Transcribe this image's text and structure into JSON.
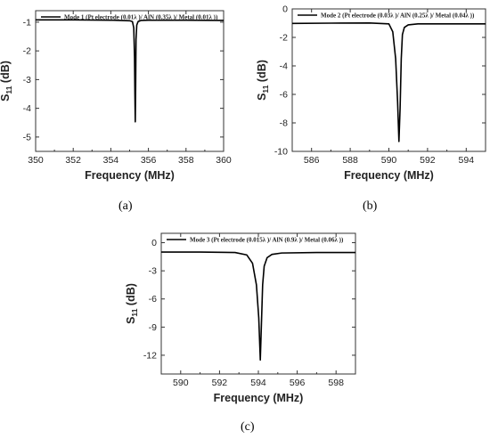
{
  "chart_data": [
    {
      "type": "line",
      "title": "",
      "xlabel": "Frequency (MHz)",
      "ylabel": "S11 (dB)",
      "ylabel_main": "S",
      "ylabel_sub": "11",
      "ylabel_unit": " (dB)",
      "xlim": [
        350,
        360
      ],
      "ylim": [
        -5.5,
        -0.6
      ],
      "xticks": [
        350,
        352,
        354,
        356,
        358,
        360
      ],
      "yticks": [
        -1,
        -2,
        -3,
        -4,
        -5
      ],
      "series": [
        {
          "name": "Mode 1 (Pt electrode (0.01λ )/ AlN (0.35λ )/ Metal (0.01λ ))",
          "color": "#000000",
          "x": [
            350,
            352,
            354,
            355.0,
            355.15,
            355.22,
            355.26,
            355.28,
            355.3,
            355.32,
            355.34,
            355.38,
            355.45,
            355.6,
            356,
            358,
            360
          ],
          "y": [
            -0.92,
            -0.92,
            -0.93,
            -0.95,
            -0.98,
            -1.2,
            -2.2,
            -3.5,
            -4.47,
            -3.3,
            -1.6,
            -1.1,
            -0.98,
            -0.94,
            -0.93,
            -0.93,
            -0.94
          ]
        }
      ],
      "legend_position": "top-left",
      "caption": "(a)"
    },
    {
      "type": "line",
      "title": "",
      "xlabel": "Frequency (MHz)",
      "ylabel": "S11 (dB)",
      "ylabel_main": "S",
      "ylabel_sub": "11",
      "ylabel_unit": " (dB)",
      "xlim": [
        585,
        595
      ],
      "ylim": [
        -10,
        0
      ],
      "xticks": [
        586,
        588,
        590,
        592,
        594
      ],
      "yticks": [
        0,
        -2,
        -4,
        -6,
        -8,
        -10
      ],
      "series": [
        {
          "name": "Mode 2 (Pt electrode (0.03λ )/ AlN (0.25λ )/ Metal (0.04λ ))",
          "color": "#000000",
          "x": [
            585,
            587,
            589,
            590.0,
            590.2,
            590.35,
            590.45,
            590.52,
            590.58,
            590.64,
            590.7,
            590.8,
            591.0,
            591.5,
            593,
            595
          ],
          "y": [
            -1.02,
            -1.0,
            -0.99,
            -1.05,
            -1.6,
            -3.5,
            -6.5,
            -9.3,
            -7.0,
            -3.5,
            -1.8,
            -1.3,
            -1.12,
            -1.05,
            -1.05,
            -1.05
          ]
        }
      ],
      "legend_position": "top-left",
      "caption": "(b)"
    },
    {
      "type": "line",
      "title": "",
      "xlabel": "Frequency (MHz)",
      "ylabel": "S11 (dB)",
      "ylabel_main": "S",
      "ylabel_sub": "11",
      "ylabel_unit": " (dB)",
      "xlim": [
        589,
        599
      ],
      "ylim": [
        -14,
        1
      ],
      "xticks": [
        590,
        592,
        594,
        596,
        598
      ],
      "yticks": [
        0,
        -3,
        -6,
        -9,
        -12
      ],
      "series": [
        {
          "name": "Mode 3 (Pt electrode (0.015λ )/ AlN (0.9λ )/ Metal (0.06λ ))",
          "color": "#000000",
          "x": [
            589,
            591,
            592.8,
            593.4,
            593.7,
            593.9,
            594.02,
            594.1,
            594.16,
            594.22,
            594.3,
            594.45,
            594.7,
            595.2,
            597,
            599
          ],
          "y": [
            -1.0,
            -1.0,
            -1.05,
            -1.3,
            -2.2,
            -4.5,
            -8.0,
            -12.5,
            -8.5,
            -4.5,
            -2.5,
            -1.6,
            -1.25,
            -1.1,
            -1.05,
            -1.05
          ]
        }
      ],
      "legend_position": "top-left",
      "caption": "(c)"
    }
  ]
}
